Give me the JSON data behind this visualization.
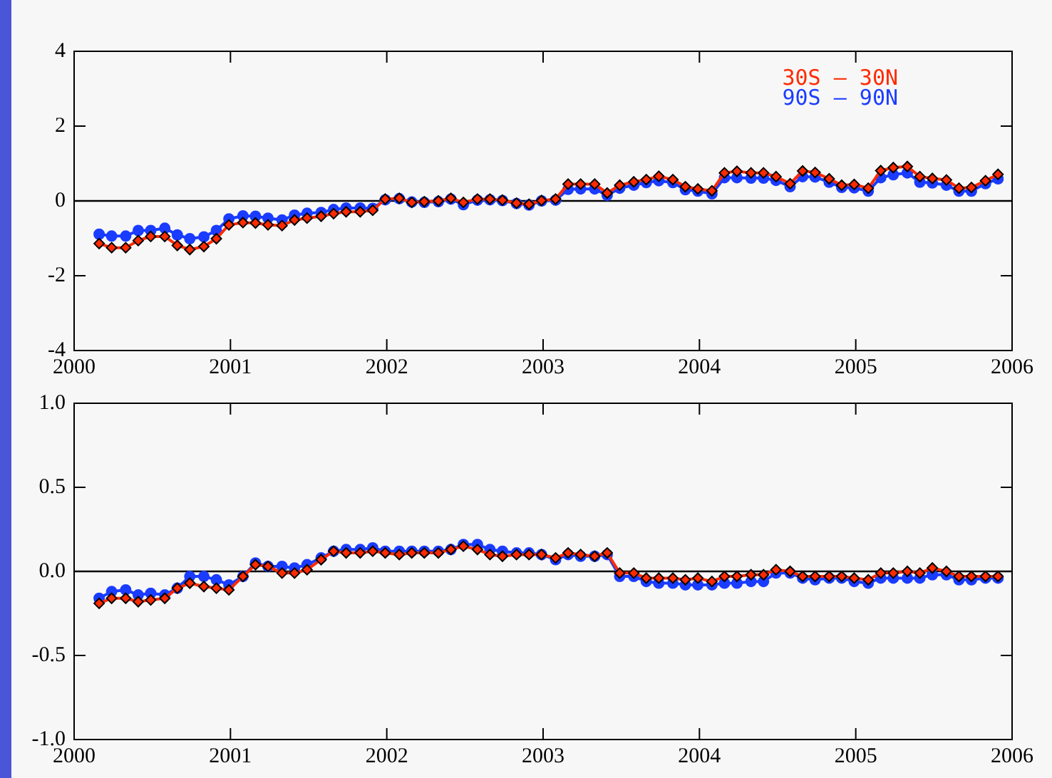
{
  "chart_data": [
    {
      "type": "line",
      "legend": "top right",
      "grid": false,
      "xlim": [
        2000,
        2006
      ],
      "xticks": [
        2000,
        2001,
        2002,
        2003,
        2004,
        2005,
        2006
      ],
      "ylim": [
        -4,
        4
      ],
      "yticks": [
        -4,
        -2,
        0,
        2,
        4
      ],
      "ref_lines": [
        {
          "axis": "y",
          "value": 0,
          "color": "#000000"
        }
      ],
      "x": [
        2000.16,
        2000.24,
        2000.33,
        2000.41,
        2000.49,
        2000.58,
        2000.66,
        2000.74,
        2000.83,
        2000.91,
        2000.99,
        2001.08,
        2001.16,
        2001.24,
        2001.33,
        2001.41,
        2001.49,
        2001.58,
        2001.66,
        2001.74,
        2001.83,
        2001.91,
        2001.99,
        2002.08,
        2002.16,
        2002.24,
        2002.33,
        2002.41,
        2002.49,
        2002.58,
        2002.66,
        2002.74,
        2002.83,
        2002.91,
        2002.99,
        2003.08,
        2003.16,
        2003.24,
        2003.33,
        2003.41,
        2003.49,
        2003.58,
        2003.66,
        2003.74,
        2003.83,
        2003.91,
        2003.99,
        2004.08,
        2004.16,
        2004.24,
        2004.33,
        2004.41,
        2004.49,
        2004.58,
        2004.66,
        2004.74,
        2004.83,
        2004.91,
        2004.99,
        2005.08,
        2005.16,
        2005.24,
        2005.33,
        2005.41,
        2005.49,
        2005.58,
        2005.66,
        2005.74,
        2005.83,
        2005.91
      ],
      "series": [
        {
          "name": "30S – 30N",
          "color": "#ff2a00",
          "marker": "diamond",
          "values": [
            -1.14,
            -1.25,
            -1.25,
            -1.06,
            -0.95,
            -0.95,
            -1.19,
            -1.3,
            -1.22,
            -1.01,
            -0.64,
            -0.58,
            -0.59,
            -0.64,
            -0.66,
            -0.51,
            -0.46,
            -0.41,
            -0.34,
            -0.29,
            -0.29,
            -0.25,
            0.05,
            0.07,
            -0.04,
            -0.02,
            0,
            0.07,
            -0.04,
            0.05,
            0.05,
            0.02,
            -0.06,
            -0.09,
            0.01,
            0.05,
            0.45,
            0.45,
            0.45,
            0.21,
            0.42,
            0.51,
            0.57,
            0.66,
            0.57,
            0.38,
            0.32,
            0.27,
            0.75,
            0.79,
            0.75,
            0.75,
            0.65,
            0.46,
            0.8,
            0.76,
            0.59,
            0.42,
            0.44,
            0.34,
            0.81,
            0.89,
            0.92,
            0.65,
            0.6,
            0.56,
            0.34,
            0.36,
            0.54,
            0.71
          ]
        },
        {
          "name": "90S – 90N",
          "color": "#1a3cff",
          "marker": "circle",
          "values": [
            -0.89,
            -0.94,
            -0.94,
            -0.79,
            -0.79,
            -0.73,
            -0.91,
            -1.01,
            -0.96,
            -0.79,
            -0.48,
            -0.4,
            -0.41,
            -0.46,
            -0.51,
            -0.38,
            -0.33,
            -0.31,
            -0.23,
            -0.19,
            -0.19,
            -0.2,
            0.03,
            0.06,
            -0.03,
            -0.04,
            -0.02,
            0.05,
            -0.1,
            0.02,
            0.03,
            0.01,
            -0.07,
            -0.11,
            0,
            0.02,
            0.31,
            0.32,
            0.32,
            0.15,
            0.34,
            0.42,
            0.49,
            0.54,
            0.49,
            0.3,
            0.26,
            0.19,
            0.62,
            0.62,
            0.61,
            0.61,
            0.55,
            0.38,
            0.65,
            0.64,
            0.5,
            0.36,
            0.35,
            0.26,
            0.62,
            0.7,
            0.75,
            0.5,
            0.48,
            0.42,
            0.26,
            0.26,
            0.46,
            0.59
          ]
        }
      ]
    },
    {
      "type": "line",
      "grid": false,
      "xlim": [
        2000,
        2006
      ],
      "xticks": [
        2000,
        2001,
        2002,
        2003,
        2004,
        2005,
        2006
      ],
      "ylim": [
        -1,
        1
      ],
      "yticks": [
        {
          "value": -1,
          "label": "-1.0"
        },
        {
          "value": -0.5,
          "label": "-0.5"
        },
        {
          "value": 0,
          "label": "0.0"
        },
        {
          "value": 0.5,
          "label": "0.5"
        },
        {
          "value": 1,
          "label": "1.0"
        }
      ],
      "ref_lines": [
        {
          "axis": "y",
          "value": 0,
          "color": "#000000"
        }
      ],
      "x": [
        2000.16,
        2000.24,
        2000.33,
        2000.41,
        2000.49,
        2000.58,
        2000.66,
        2000.74,
        2000.83,
        2000.91,
        2000.99,
        2001.08,
        2001.16,
        2001.24,
        2001.33,
        2001.41,
        2001.49,
        2001.58,
        2001.66,
        2001.74,
        2001.83,
        2001.91,
        2001.99,
        2002.08,
        2002.16,
        2002.24,
        2002.33,
        2002.41,
        2002.49,
        2002.58,
        2002.66,
        2002.74,
        2002.83,
        2002.91,
        2002.99,
        2003.08,
        2003.16,
        2003.24,
        2003.33,
        2003.41,
        2003.49,
        2003.58,
        2003.66,
        2003.74,
        2003.83,
        2003.91,
        2003.99,
        2004.08,
        2004.16,
        2004.24,
        2004.33,
        2004.41,
        2004.49,
        2004.58,
        2004.66,
        2004.74,
        2004.83,
        2004.91,
        2004.99,
        2005.08,
        2005.16,
        2005.24,
        2005.33,
        2005.41,
        2005.49,
        2005.58,
        2005.66,
        2005.74,
        2005.83,
        2005.91
      ],
      "series": [
        {
          "color": "#ff2a00",
          "marker": "diamond",
          "values": [
            -0.19,
            -0.16,
            -0.16,
            -0.18,
            -0.17,
            -0.16,
            -0.1,
            -0.07,
            -0.09,
            -0.1,
            -0.11,
            -0.03,
            0.04,
            0.03,
            -0.01,
            -0.01,
            0.01,
            0.07,
            0.12,
            0.11,
            0.11,
            0.12,
            0.11,
            0.1,
            0.11,
            0.11,
            0.11,
            0.13,
            0.15,
            0.13,
            0.1,
            0.09,
            0.1,
            0.1,
            0.1,
            0.08,
            0.11,
            0.1,
            0.09,
            0.11,
            -0.01,
            -0.01,
            -0.04,
            -0.04,
            -0.04,
            -0.05,
            -0.04,
            -0.06,
            -0.03,
            -0.03,
            -0.02,
            -0.02,
            0.01,
            0,
            -0.03,
            -0.03,
            -0.03,
            -0.03,
            -0.04,
            -0.05,
            -0.01,
            -0.01,
            0,
            -0.01,
            0.02,
            0,
            -0.03,
            -0.03,
            -0.03,
            -0.03
          ]
        },
        {
          "color": "#1a3cff",
          "marker": "circle",
          "values": [
            -0.16,
            -0.12,
            -0.11,
            -0.14,
            -0.13,
            -0.14,
            -0.1,
            -0.03,
            -0.03,
            -0.05,
            -0.08,
            -0.03,
            0.05,
            0.03,
            0.03,
            0.02,
            0.04,
            0.08,
            0.12,
            0.13,
            0.13,
            0.14,
            0.12,
            0.12,
            0.12,
            0.12,
            0.12,
            0.13,
            0.16,
            0.16,
            0.13,
            0.12,
            0.11,
            0.11,
            0.1,
            0.07,
            0.1,
            0.09,
            0.09,
            0.1,
            -0.03,
            -0.03,
            -0.06,
            -0.07,
            -0.07,
            -0.08,
            -0.08,
            -0.08,
            -0.07,
            -0.07,
            -0.06,
            -0.06,
            -0.01,
            -0.01,
            -0.04,
            -0.05,
            -0.04,
            -0.04,
            -0.06,
            -0.07,
            -0.04,
            -0.04,
            -0.04,
            -0.04,
            -0.02,
            -0.02,
            -0.05,
            -0.05,
            -0.04,
            -0.04
          ]
        }
      ]
    }
  ]
}
